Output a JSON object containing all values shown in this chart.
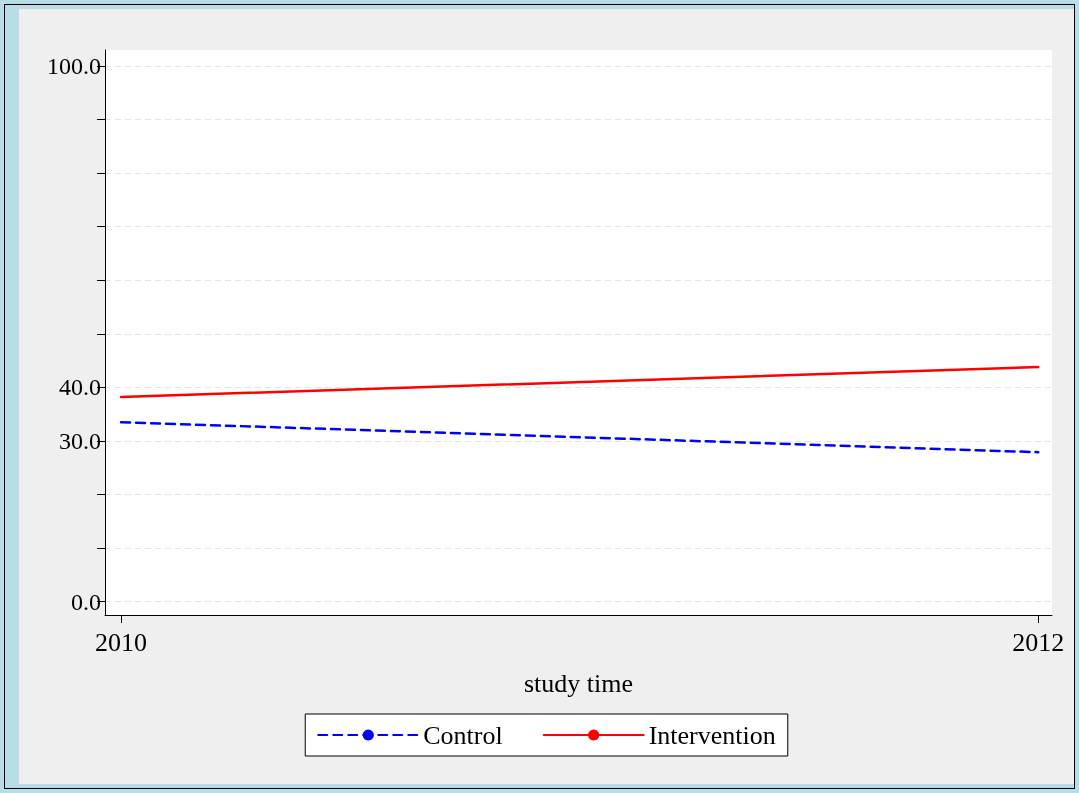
{
  "chart_data": {
    "type": "line",
    "xlabel": "study time",
    "x": [
      2010,
      2012
    ],
    "series": [
      {
        "name": "Control",
        "color": "#0000ff",
        "values": [
          33.5,
          27.9
        ],
        "line_style": "dashed"
      },
      {
        "name": "Intervention",
        "color": "#ff0000",
        "values": [
          38.2,
          43.8
        ],
        "line_style": "solid"
      }
    ],
    "xlim": [
      2009.965,
      2012.03
    ],
    "xticks": [
      2010,
      2012
    ],
    "ylim": [
      -2.5,
      103
    ],
    "yticks": [
      {
        "value": 0,
        "label": "0.0"
      },
      {
        "value": 10,
        "label": null
      },
      {
        "value": 20,
        "label": null
      },
      {
        "value": 30,
        "label": "30.0"
      },
      {
        "value": 40,
        "label": "40.0"
      },
      {
        "value": 50,
        "label": null
      },
      {
        "value": 60,
        "label": null
      },
      {
        "value": 70,
        "label": null
      },
      {
        "value": 80,
        "label": null
      },
      {
        "value": 90,
        "label": null
      },
      {
        "value": 100,
        "label": "100.0"
      }
    ],
    "grid": "y",
    "legend": "bottom",
    "marker": "none"
  }
}
